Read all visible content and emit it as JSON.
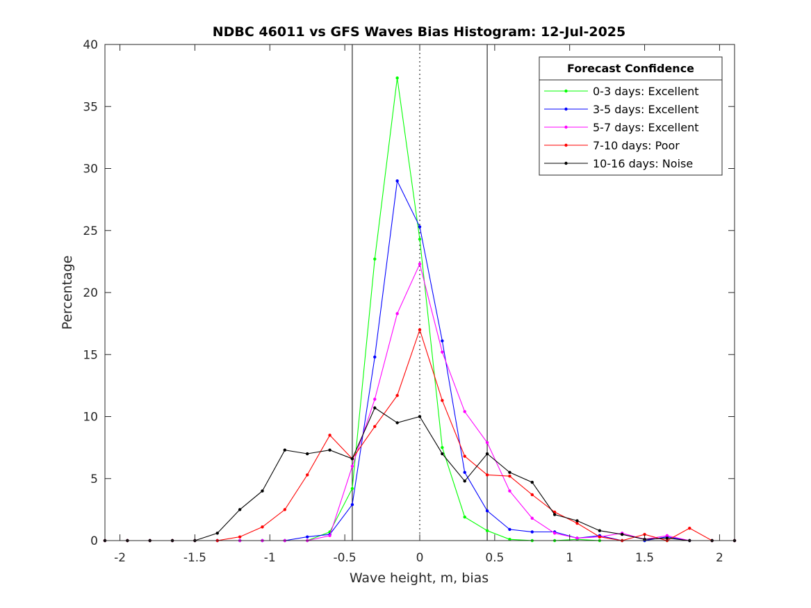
{
  "chart_data": {
    "type": "line",
    "title": "NDBC 46011 vs GFS Waves Bias Histogram: 12-Jul-2025",
    "xlabel": "Wave height, m, bias",
    "ylabel": "Percentage",
    "xlim": [
      -2.1,
      2.1
    ],
    "ylim": [
      0,
      40
    ],
    "xticks": [
      -2,
      -1.5,
      -1,
      -0.5,
      0,
      0.5,
      1,
      1.5,
      2
    ],
    "xtick_labels": [
      "-2",
      "-1.5",
      "-1",
      "-0.5",
      "0",
      "0.5",
      "1",
      "1.5",
      "2"
    ],
    "yticks": [
      0,
      5,
      10,
      15,
      20,
      25,
      30,
      35,
      40
    ],
    "ytick_labels": [
      "0",
      "5",
      "10",
      "15",
      "20",
      "25",
      "30",
      "35",
      "40"
    ],
    "grid": false,
    "reference_lines": [
      {
        "x": -0.45,
        "style": "solid"
      },
      {
        "x": 0,
        "style": "dotted"
      },
      {
        "x": 0.45,
        "style": "solid"
      }
    ],
    "legend": {
      "title": "Forecast Confidence",
      "position": "top-right"
    },
    "x": [
      -2.1,
      -1.95,
      -1.8,
      -1.65,
      -1.5,
      -1.35,
      -1.2,
      -1.05,
      -0.9,
      -0.75,
      -0.6,
      -0.45,
      -0.3,
      -0.15,
      0,
      0.15,
      0.3,
      0.45,
      0.6,
      0.75,
      0.9,
      1.05,
      1.2,
      1.35,
      1.5,
      1.65,
      1.8,
      1.95,
      2.1
    ],
    "series": [
      {
        "name": "0-3 days: Excellent",
        "color": "#00ff00",
        "values": [
          0,
          0,
          0,
          0,
          0,
          0,
          0,
          0,
          0,
          0,
          0.7,
          4.2,
          22.7,
          37.3,
          24.3,
          7.5,
          1.9,
          0.8,
          0.1,
          0,
          0,
          0.1,
          0,
          0,
          0,
          0,
          0,
          0,
          0
        ]
      },
      {
        "name": "3-5 days: Excellent",
        "color": "#0000ff",
        "values": [
          0,
          0,
          0,
          0,
          0,
          0,
          0,
          0,
          0,
          0.3,
          0.5,
          2.9,
          14.8,
          29.0,
          25.3,
          16.1,
          5.5,
          2.4,
          0.9,
          0.7,
          0.7,
          0.2,
          0.4,
          0,
          0,
          0.3,
          0,
          0,
          0
        ]
      },
      {
        "name": "5-7 days: Excellent",
        "color": "#ff00ff",
        "values": [
          0,
          0,
          0,
          0,
          0,
          0,
          0,
          0,
          0,
          0,
          0.4,
          6.0,
          11.4,
          18.3,
          22.3,
          15.2,
          10.4,
          7.9,
          4.0,
          1.8,
          0.6,
          0.2,
          0.3,
          0.6,
          0.1,
          0.4,
          0,
          0,
          0
        ]
      },
      {
        "name": "7-10 days: Poor",
        "color": "#ff0000",
        "values": [
          0,
          0,
          0,
          0,
          0,
          0,
          0.3,
          1.1,
          2.5,
          5.3,
          8.5,
          6.6,
          9.2,
          11.7,
          17.0,
          11.3,
          6.8,
          5.3,
          5.2,
          3.7,
          2.3,
          1.4,
          0.3,
          0,
          0.5,
          0,
          1.0,
          0,
          0
        ]
      },
      {
        "name": "10-16 days: Noise",
        "color": "#000000",
        "values": [
          0,
          0,
          0,
          0,
          0,
          0.6,
          2.5,
          4.0,
          7.3,
          7.0,
          7.3,
          6.6,
          10.7,
          9.5,
          10.0,
          7.0,
          4.8,
          7.0,
          5.5,
          4.7,
          2.1,
          1.6,
          0.8,
          0.5,
          0.1,
          0.2,
          0,
          0,
          0
        ]
      }
    ]
  }
}
